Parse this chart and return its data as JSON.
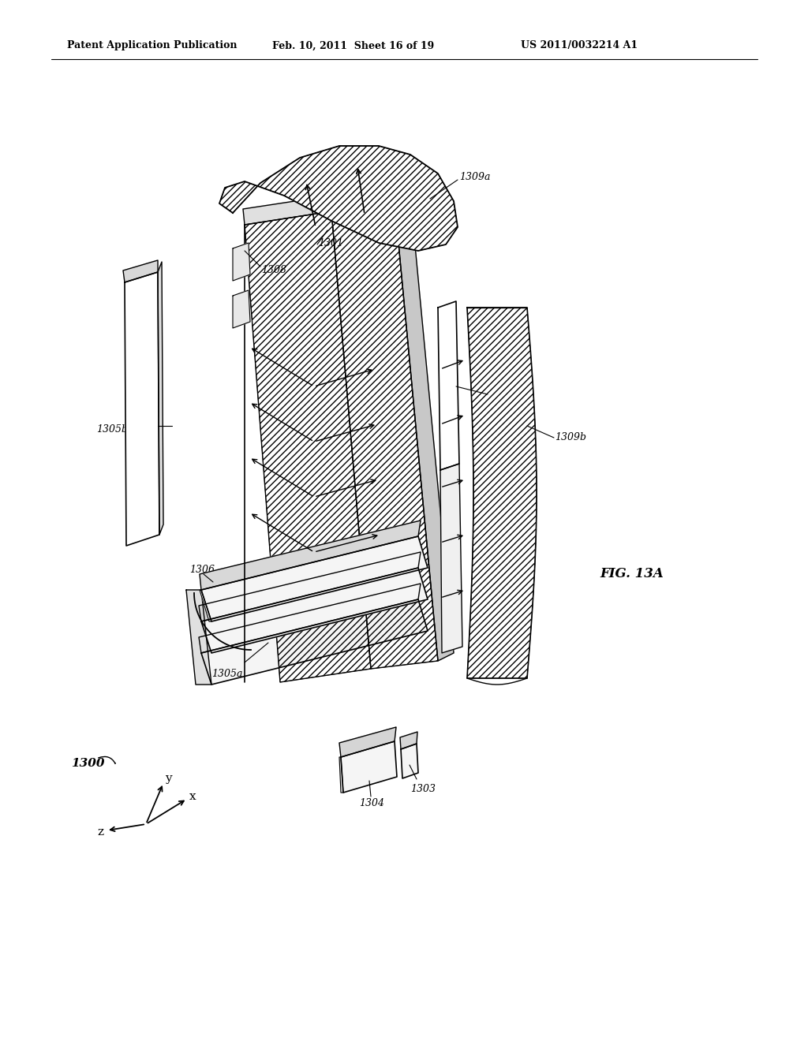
{
  "header_left": "Patent Application Publication",
  "header_mid": "Feb. 10, 2011  Sheet 16 of 19",
  "header_right": "US 2011/0032214 A1",
  "fig_label": "FIG. 13A",
  "bg": "#ffffff",
  "lc": "#000000"
}
